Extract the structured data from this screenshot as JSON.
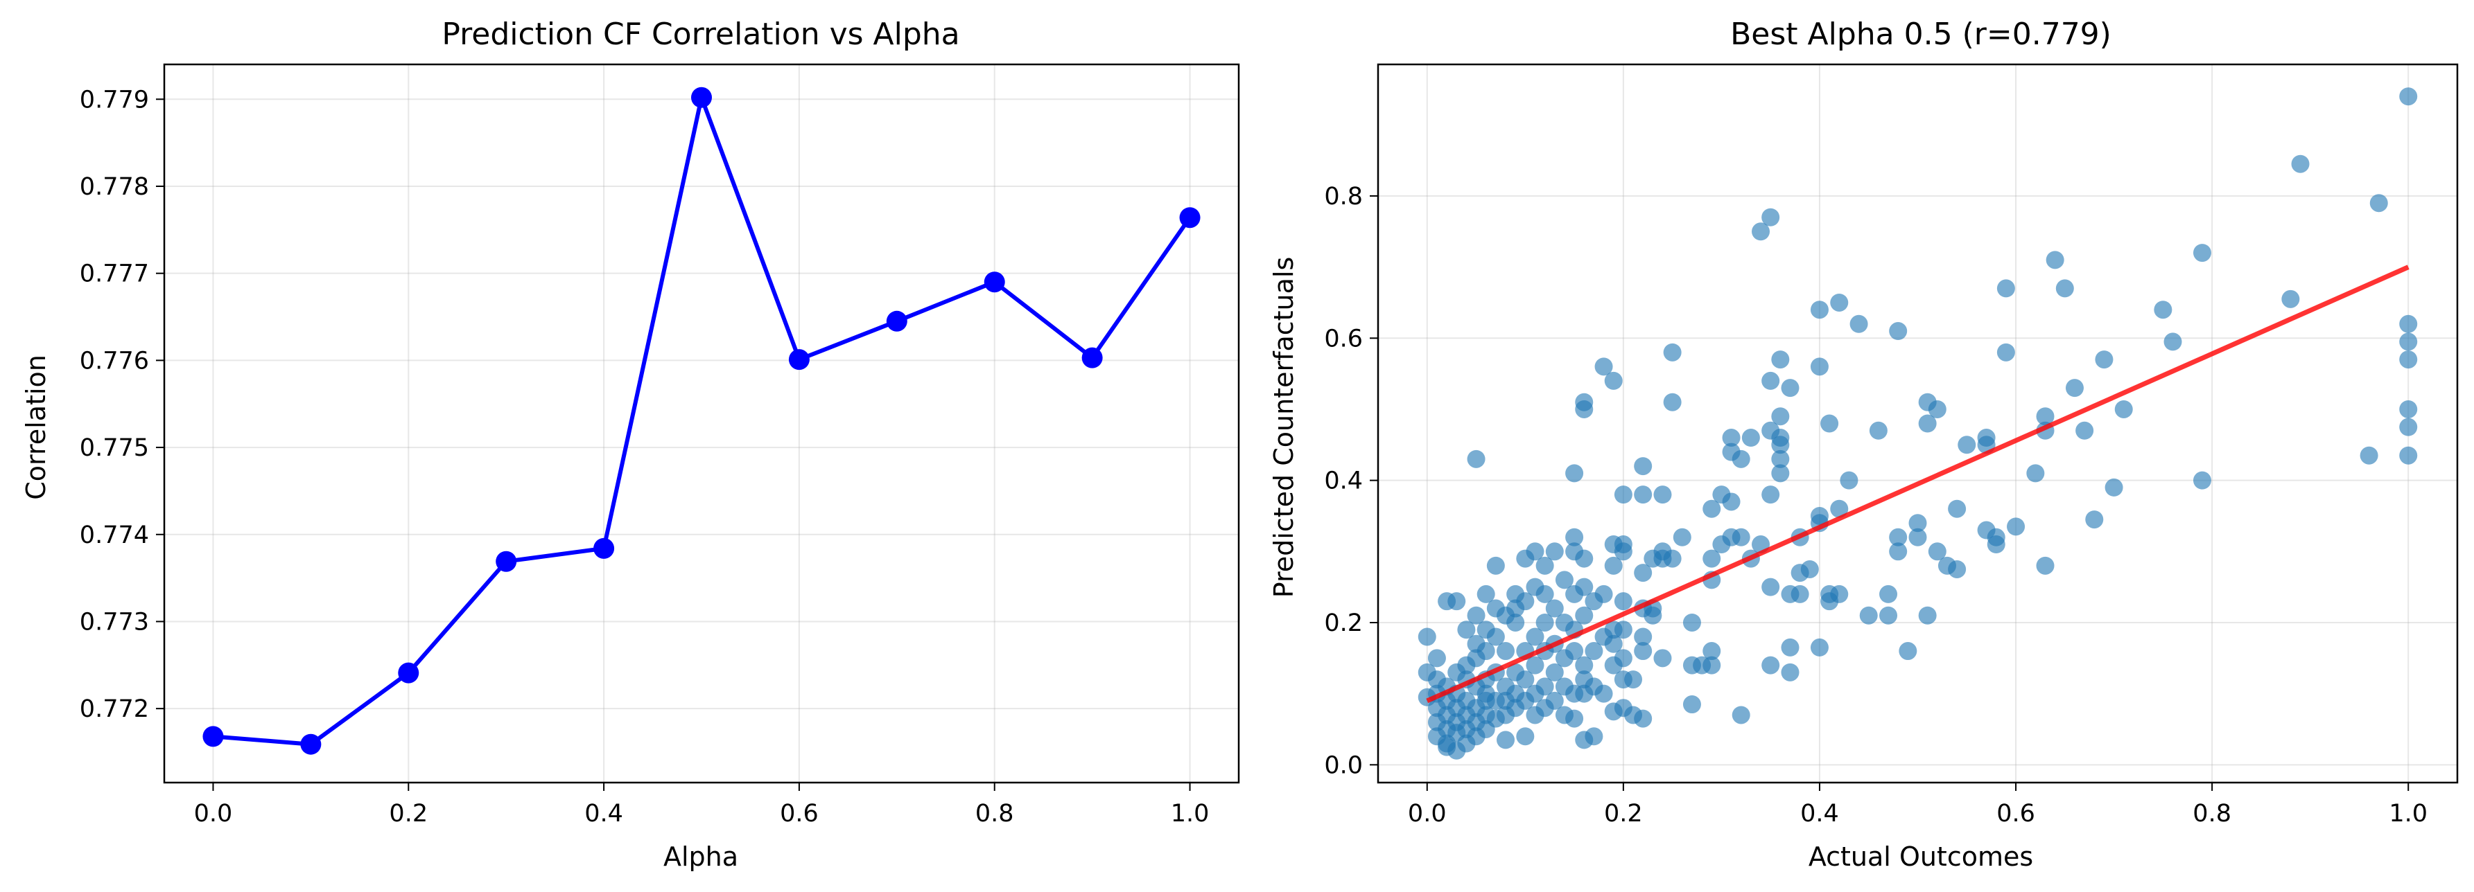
{
  "chart_data": [
    {
      "type": "line",
      "title": "Prediction CF Correlation vs Alpha",
      "xlabel": "Alpha",
      "ylabel": "Correlation",
      "xlim": [
        -0.05,
        1.05
      ],
      "ylim": [
        0.77115,
        0.7794
      ],
      "xticks": [
        0.0,
        0.2,
        0.4,
        0.6,
        0.8,
        1.0
      ],
      "xtick_labels": [
        "0.0",
        "0.2",
        "0.4",
        "0.6",
        "0.8",
        "1.0"
      ],
      "yticks": [
        0.772,
        0.773,
        0.774,
        0.775,
        0.776,
        0.777,
        0.778,
        0.779
      ],
      "ytick_labels": [
        "0.772",
        "0.773",
        "0.774",
        "0.775",
        "0.776",
        "0.777",
        "0.778",
        "0.779"
      ],
      "grid": true,
      "series": [
        {
          "color": "#0000ff",
          "marker": "circle",
          "x": [
            0.0,
            0.1,
            0.2,
            0.3,
            0.4,
            0.5,
            0.6,
            0.7,
            0.8,
            0.9,
            1.0
          ],
          "y": [
            0.77168,
            0.77159,
            0.77241,
            0.77369,
            0.77384,
            0.77902,
            0.77601,
            0.77645,
            0.7769,
            0.77603,
            0.77764
          ]
        }
      ]
    },
    {
      "type": "scatter",
      "title": "Best Alpha 0.5 (r=0.779)",
      "xlabel": "Actual Outcomes",
      "ylabel": "Predicted Counterfactuals",
      "xlim": [
        -0.05,
        1.05
      ],
      "ylim": [
        -0.025,
        0.985
      ],
      "xticks": [
        0.0,
        0.2,
        0.4,
        0.6,
        0.8,
        1.0
      ],
      "xtick_labels": [
        "0.0",
        "0.2",
        "0.4",
        "0.6",
        "0.8",
        "1.0"
      ],
      "yticks": [
        0.0,
        0.2,
        0.4,
        0.6,
        0.8
      ],
      "ytick_labels": [
        "0.0",
        "0.2",
        "0.4",
        "0.6",
        "0.8"
      ],
      "grid": true,
      "point_color": "#1f77b4",
      "point_opacity": 0.6,
      "fit_line": {
        "color": "#ff0000",
        "opacity": 0.8,
        "x": [
          0.0,
          1.0
        ],
        "y": [
          0.09,
          0.7
        ]
      },
      "points": [
        [
          0.0,
          0.18
        ],
        [
          0.0,
          0.13
        ],
        [
          0.0,
          0.095
        ],
        [
          0.01,
          0.15
        ],
        [
          0.01,
          0.12
        ],
        [
          0.01,
          0.1
        ],
        [
          0.01,
          0.08
        ],
        [
          0.01,
          0.06
        ],
        [
          0.01,
          0.04
        ],
        [
          0.02,
          0.23
        ],
        [
          0.02,
          0.11
        ],
        [
          0.02,
          0.09
        ],
        [
          0.02,
          0.07
        ],
        [
          0.02,
          0.05
        ],
        [
          0.02,
          0.03
        ],
        [
          0.02,
          0.025
        ],
        [
          0.03,
          0.23
        ],
        [
          0.03,
          0.13
        ],
        [
          0.03,
          0.1
        ],
        [
          0.03,
          0.08
        ],
        [
          0.03,
          0.06
        ],
        [
          0.03,
          0.045
        ],
        [
          0.03,
          0.02
        ],
        [
          0.04,
          0.19
        ],
        [
          0.04,
          0.14
        ],
        [
          0.04,
          0.12
        ],
        [
          0.04,
          0.09
        ],
        [
          0.04,
          0.07
        ],
        [
          0.04,
          0.05
        ],
        [
          0.04,
          0.03
        ],
        [
          0.05,
          0.43
        ],
        [
          0.05,
          0.21
        ],
        [
          0.05,
          0.17
        ],
        [
          0.05,
          0.15
        ],
        [
          0.05,
          0.11
        ],
        [
          0.05,
          0.08
        ],
        [
          0.05,
          0.06
        ],
        [
          0.05,
          0.04
        ],
        [
          0.06,
          0.24
        ],
        [
          0.06,
          0.19
        ],
        [
          0.06,
          0.16
        ],
        [
          0.06,
          0.12
        ],
        [
          0.06,
          0.1
        ],
        [
          0.06,
          0.09
        ],
        [
          0.06,
          0.07
        ],
        [
          0.06,
          0.05
        ],
        [
          0.07,
          0.28
        ],
        [
          0.07,
          0.22
        ],
        [
          0.07,
          0.18
        ],
        [
          0.07,
          0.13
        ],
        [
          0.07,
          0.09
        ],
        [
          0.07,
          0.065
        ],
        [
          0.08,
          0.21
        ],
        [
          0.08,
          0.16
        ],
        [
          0.08,
          0.11
        ],
        [
          0.08,
          0.09
        ],
        [
          0.08,
          0.07
        ],
        [
          0.08,
          0.035
        ],
        [
          0.09,
          0.24
        ],
        [
          0.09,
          0.22
        ],
        [
          0.09,
          0.2
        ],
        [
          0.09,
          0.13
        ],
        [
          0.09,
          0.1
        ],
        [
          0.09,
          0.08
        ],
        [
          0.1,
          0.29
        ],
        [
          0.1,
          0.23
        ],
        [
          0.1,
          0.16
        ],
        [
          0.1,
          0.12
        ],
        [
          0.1,
          0.09
        ],
        [
          0.1,
          0.04
        ],
        [
          0.11,
          0.3
        ],
        [
          0.11,
          0.25
        ],
        [
          0.11,
          0.18
        ],
        [
          0.11,
          0.14
        ],
        [
          0.11,
          0.1
        ],
        [
          0.11,
          0.07
        ],
        [
          0.12,
          0.28
        ],
        [
          0.12,
          0.24
        ],
        [
          0.12,
          0.2
        ],
        [
          0.12,
          0.16
        ],
        [
          0.12,
          0.11
        ],
        [
          0.12,
          0.08
        ],
        [
          0.13,
          0.3
        ],
        [
          0.13,
          0.22
        ],
        [
          0.13,
          0.17
        ],
        [
          0.13,
          0.13
        ],
        [
          0.13,
          0.09
        ],
        [
          0.14,
          0.26
        ],
        [
          0.14,
          0.2
        ],
        [
          0.14,
          0.15
        ],
        [
          0.14,
          0.11
        ],
        [
          0.14,
          0.07
        ],
        [
          0.15,
          0.41
        ],
        [
          0.15,
          0.32
        ],
        [
          0.15,
          0.3
        ],
        [
          0.15,
          0.24
        ],
        [
          0.15,
          0.19
        ],
        [
          0.15,
          0.16
        ],
        [
          0.15,
          0.1
        ],
        [
          0.15,
          0.065
        ],
        [
          0.16,
          0.51
        ],
        [
          0.16,
          0.5
        ],
        [
          0.16,
          0.29
        ],
        [
          0.16,
          0.25
        ],
        [
          0.16,
          0.21
        ],
        [
          0.16,
          0.14
        ],
        [
          0.16,
          0.12
        ],
        [
          0.16,
          0.1
        ],
        [
          0.16,
          0.035
        ],
        [
          0.17,
          0.23
        ],
        [
          0.17,
          0.16
        ],
        [
          0.17,
          0.11
        ],
        [
          0.17,
          0.04
        ],
        [
          0.18,
          0.56
        ],
        [
          0.18,
          0.24
        ],
        [
          0.18,
          0.18
        ],
        [
          0.18,
          0.1
        ],
        [
          0.19,
          0.54
        ],
        [
          0.19,
          0.31
        ],
        [
          0.19,
          0.28
        ],
        [
          0.19,
          0.19
        ],
        [
          0.19,
          0.17
        ],
        [
          0.19,
          0.14
        ],
        [
          0.19,
          0.075
        ],
        [
          0.2,
          0.38
        ],
        [
          0.2,
          0.31
        ],
        [
          0.2,
          0.3
        ],
        [
          0.2,
          0.23
        ],
        [
          0.2,
          0.19
        ],
        [
          0.2,
          0.15
        ],
        [
          0.2,
          0.12
        ],
        [
          0.2,
          0.08
        ],
        [
          0.21,
          0.12
        ],
        [
          0.21,
          0.07
        ],
        [
          0.22,
          0.42
        ],
        [
          0.22,
          0.38
        ],
        [
          0.22,
          0.27
        ],
        [
          0.22,
          0.22
        ],
        [
          0.22,
          0.18
        ],
        [
          0.22,
          0.16
        ],
        [
          0.22,
          0.065
        ],
        [
          0.23,
          0.29
        ],
        [
          0.23,
          0.22
        ],
        [
          0.23,
          0.21
        ],
        [
          0.24,
          0.38
        ],
        [
          0.24,
          0.3
        ],
        [
          0.24,
          0.29
        ],
        [
          0.24,
          0.15
        ],
        [
          0.25,
          0.58
        ],
        [
          0.25,
          0.51
        ],
        [
          0.25,
          0.29
        ],
        [
          0.26,
          0.32
        ],
        [
          0.27,
          0.2
        ],
        [
          0.27,
          0.14
        ],
        [
          0.27,
          0.085
        ],
        [
          0.28,
          0.14
        ],
        [
          0.29,
          0.36
        ],
        [
          0.29,
          0.29
        ],
        [
          0.29,
          0.26
        ],
        [
          0.29,
          0.16
        ],
        [
          0.29,
          0.14
        ],
        [
          0.3,
          0.38
        ],
        [
          0.3,
          0.31
        ],
        [
          0.31,
          0.46
        ],
        [
          0.31,
          0.44
        ],
        [
          0.31,
          0.37
        ],
        [
          0.31,
          0.32
        ],
        [
          0.32,
          0.43
        ],
        [
          0.32,
          0.32
        ],
        [
          0.32,
          0.07
        ],
        [
          0.33,
          0.46
        ],
        [
          0.33,
          0.29
        ],
        [
          0.34,
          0.75
        ],
        [
          0.34,
          0.31
        ],
        [
          0.35,
          0.77
        ],
        [
          0.35,
          0.54
        ],
        [
          0.35,
          0.47
        ],
        [
          0.35,
          0.38
        ],
        [
          0.35,
          0.25
        ],
        [
          0.35,
          0.14
        ],
        [
          0.36,
          0.57
        ],
        [
          0.36,
          0.49
        ],
        [
          0.36,
          0.46
        ],
        [
          0.36,
          0.45
        ],
        [
          0.36,
          0.43
        ],
        [
          0.36,
          0.41
        ],
        [
          0.37,
          0.53
        ],
        [
          0.37,
          0.24
        ],
        [
          0.37,
          0.165
        ],
        [
          0.37,
          0.13
        ],
        [
          0.38,
          0.32
        ],
        [
          0.38,
          0.27
        ],
        [
          0.38,
          0.24
        ],
        [
          0.39,
          0.275
        ],
        [
          0.4,
          0.64
        ],
        [
          0.4,
          0.56
        ],
        [
          0.4,
          0.35
        ],
        [
          0.4,
          0.34
        ],
        [
          0.4,
          0.165
        ],
        [
          0.41,
          0.48
        ],
        [
          0.41,
          0.24
        ],
        [
          0.41,
          0.23
        ],
        [
          0.42,
          0.65
        ],
        [
          0.42,
          0.36
        ],
        [
          0.42,
          0.24
        ],
        [
          0.43,
          0.4
        ],
        [
          0.44,
          0.62
        ],
        [
          0.45,
          0.21
        ],
        [
          0.46,
          0.47
        ],
        [
          0.47,
          0.24
        ],
        [
          0.47,
          0.21
        ],
        [
          0.48,
          0.61
        ],
        [
          0.48,
          0.32
        ],
        [
          0.48,
          0.3
        ],
        [
          0.49,
          0.16
        ],
        [
          0.5,
          0.34
        ],
        [
          0.5,
          0.32
        ],
        [
          0.51,
          0.51
        ],
        [
          0.51,
          0.48
        ],
        [
          0.51,
          0.21
        ],
        [
          0.52,
          0.5
        ],
        [
          0.52,
          0.3
        ],
        [
          0.53,
          0.28
        ],
        [
          0.54,
          0.36
        ],
        [
          0.54,
          0.275
        ],
        [
          0.55,
          0.45
        ],
        [
          0.57,
          0.46
        ],
        [
          0.57,
          0.45
        ],
        [
          0.57,
          0.33
        ],
        [
          0.58,
          0.32
        ],
        [
          0.58,
          0.31
        ],
        [
          0.59,
          0.67
        ],
        [
          0.59,
          0.58
        ],
        [
          0.6,
          0.335
        ],
        [
          0.62,
          0.41
        ],
        [
          0.63,
          0.49
        ],
        [
          0.63,
          0.47
        ],
        [
          0.63,
          0.28
        ],
        [
          0.64,
          0.71
        ],
        [
          0.65,
          0.67
        ],
        [
          0.66,
          0.53
        ],
        [
          0.67,
          0.47
        ],
        [
          0.68,
          0.345
        ],
        [
          0.69,
          0.57
        ],
        [
          0.7,
          0.39
        ],
        [
          0.71,
          0.5
        ],
        [
          0.75,
          0.64
        ],
        [
          0.76,
          0.595
        ],
        [
          0.79,
          0.72
        ],
        [
          0.79,
          0.4
        ],
        [
          0.88,
          0.655
        ],
        [
          0.89,
          0.845
        ],
        [
          0.96,
          0.435
        ],
        [
          0.97,
          0.79
        ],
        [
          1.0,
          0.94
        ],
        [
          1.0,
          0.62
        ],
        [
          1.0,
          0.595
        ],
        [
          1.0,
          0.57
        ],
        [
          1.0,
          0.5
        ],
        [
          1.0,
          0.475
        ],
        [
          1.0,
          0.435
        ]
      ]
    }
  ]
}
